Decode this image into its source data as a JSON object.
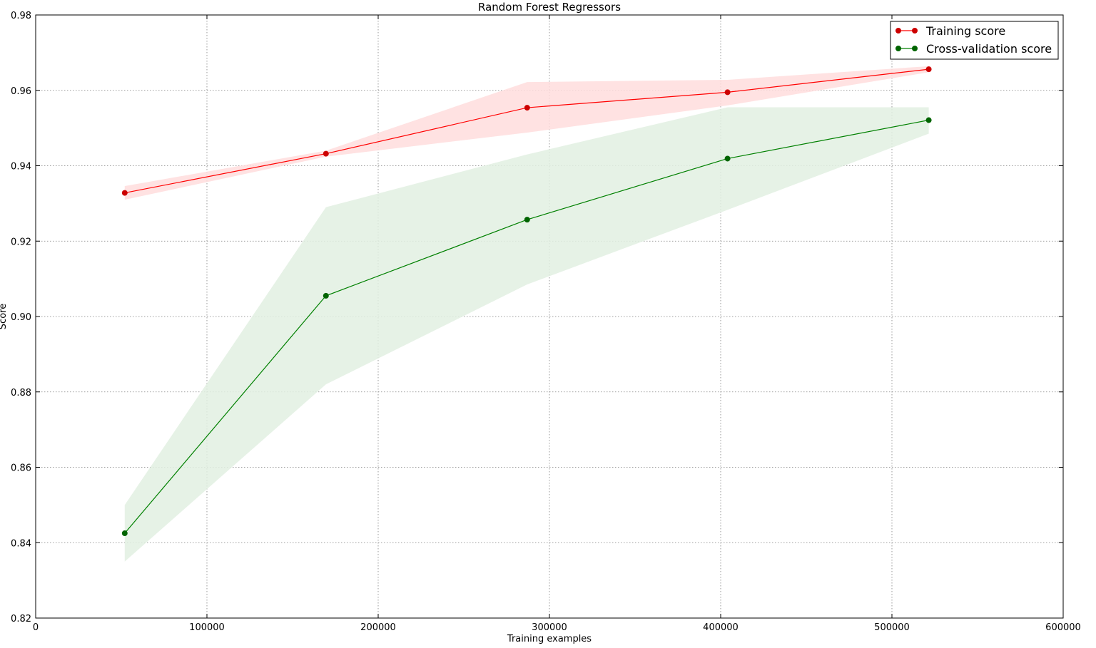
{
  "chart_data": {
    "type": "line",
    "title": "Random Forest Regressors",
    "xlabel": "Training examples",
    "ylabel": "Score",
    "xlim": [
      0,
      600000
    ],
    "ylim": [
      0.82,
      0.98
    ],
    "xticks": [
      0,
      100000,
      200000,
      300000,
      400000,
      500000,
      600000
    ],
    "xtick_labels": [
      "0",
      "100000",
      "200000",
      "300000",
      "400000",
      "500000",
      "600000"
    ],
    "yticks": [
      0.82,
      0.84,
      0.86,
      0.88,
      0.9,
      0.92,
      0.94,
      0.96,
      0.98
    ],
    "ytick_labels": [
      "0.82",
      "0.84",
      "0.86",
      "0.88",
      "0.90",
      "0.92",
      "0.94",
      "0.96",
      "0.98"
    ],
    "grid": true,
    "legend_position": "top-right",
    "x": [
      52000,
      169500,
      287000,
      404000,
      521500
    ],
    "series": [
      {
        "name": "Training score",
        "color": "#ff0000",
        "marker_color": "#cc0000",
        "band_color": "#ffdddd",
        "values": [
          0.9328,
          0.9432,
          0.9554,
          0.9595,
          0.9656
        ],
        "upper": [
          0.9346,
          0.944,
          0.9622,
          0.9628,
          0.9664
        ],
        "lower": [
          0.931,
          0.9424,
          0.9488,
          0.956,
          0.9648
        ]
      },
      {
        "name": "Cross-validation score",
        "color": "#008000",
        "marker_color": "#006400",
        "band_color": "#e2f0e2",
        "values": [
          0.8425,
          0.9055,
          0.9257,
          0.9419,
          0.9521
        ],
        "upper": [
          0.85,
          0.929,
          0.943,
          0.9555,
          0.9555
        ],
        "lower": [
          0.835,
          0.882,
          0.9085,
          0.9283,
          0.9485
        ]
      }
    ]
  }
}
